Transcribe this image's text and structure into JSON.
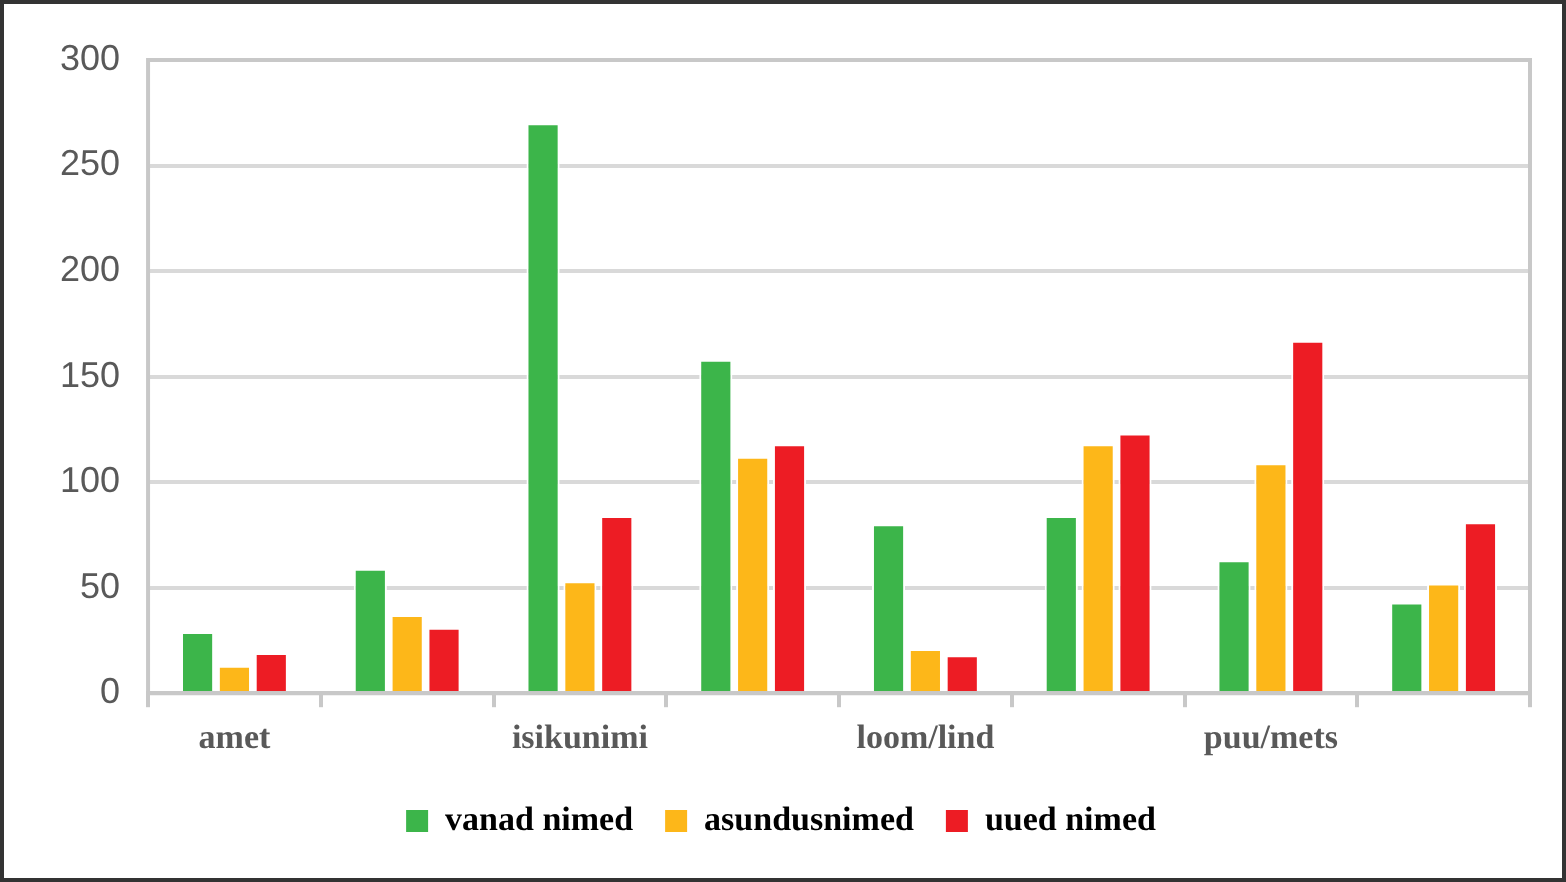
{
  "chart_data": {
    "type": "bar",
    "categories": [
      "amet",
      null,
      "isikunimi",
      null,
      "loom/lind",
      null,
      "puu/mets",
      null
    ],
    "series": [
      {
        "name": "vanad nimed",
        "color": "#3cb54a",
        "values": [
          29,
          59,
          270,
          158,
          80,
          84,
          63,
          43
        ]
      },
      {
        "name": "asundusnimed",
        "color": "#fdb719",
        "values": [
          13,
          37,
          53,
          112,
          21,
          118,
          109,
          52
        ]
      },
      {
        "name": "uued nimed",
        "color": "#ed1c24",
        "values": [
          19,
          31,
          84,
          118,
          18,
          123,
          167,
          81
        ]
      }
    ],
    "ylim": [
      0,
      300
    ],
    "yticks": [
      0,
      50,
      100,
      150,
      200,
      250,
      300
    ],
    "grid": "y",
    "legend": "bottom"
  }
}
